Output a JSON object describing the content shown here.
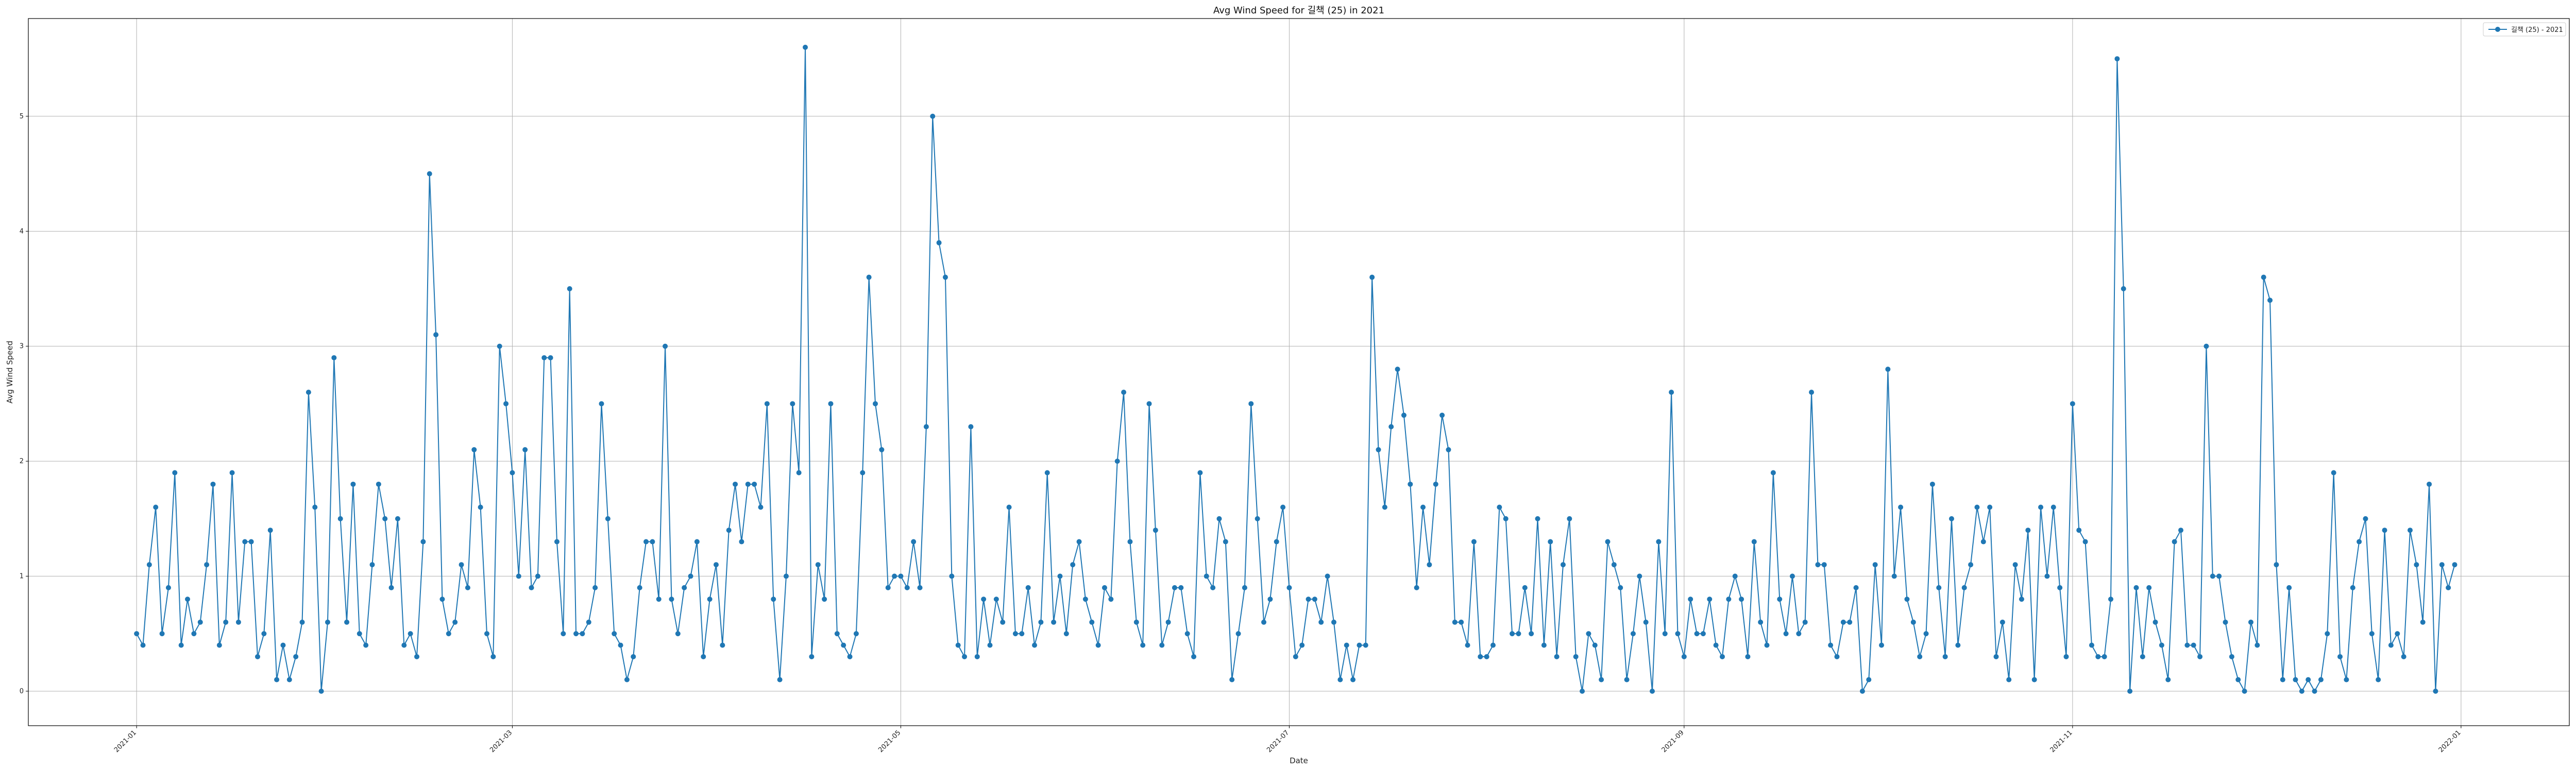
{
  "chart_data": {
    "type": "line",
    "title": "Avg Wind Speed for 길책 (25) in 2021",
    "xlabel": "Date",
    "ylabel": "Avg Wind Speed",
    "x_start": "2021-01-01",
    "x_end": "2021-12-31",
    "xlim": [
      "2020-12-15",
      "2022-01-18"
    ],
    "ylim": [
      -0.3,
      5.85
    ],
    "y_ticks": [
      0,
      1,
      2,
      3,
      4,
      5
    ],
    "x_ticks": [
      "2021-01",
      "2021-03",
      "2021-05",
      "2021-07",
      "2021-09",
      "2021-11",
      "2022-01"
    ],
    "grid": true,
    "legend": "top-right",
    "color": "#1f77b4",
    "series": [
      {
        "name": "길책 (25) - 2021",
        "values": [
          0.5,
          0.4,
          1.1,
          1.6,
          0.5,
          0.9,
          1.9,
          0.4,
          0.8,
          0.5,
          0.6,
          1.1,
          1.8,
          0.4,
          0.6,
          1.9,
          0.6,
          1.3,
          1.3,
          0.3,
          0.5,
          1.4,
          0.1,
          0.4,
          0.1,
          0.3,
          0.6,
          2.6,
          1.6,
          0.0,
          0.6,
          2.9,
          1.5,
          0.6,
          1.8,
          0.5,
          0.4,
          1.1,
          1.8,
          1.5,
          0.9,
          1.5,
          0.4,
          0.5,
          0.3,
          1.3,
          4.5,
          3.1,
          0.8,
          0.5,
          0.6,
          1.1,
          0.9,
          2.1,
          1.6,
          0.5,
          0.3,
          3.0,
          2.5,
          1.9,
          1.0,
          2.1,
          0.9,
          1.0,
          2.9,
          2.9,
          1.3,
          0.5,
          3.5,
          0.5,
          0.5,
          0.6,
          0.9,
          2.5,
          1.5,
          0.5,
          0.4,
          0.1,
          0.3,
          0.9,
          1.3,
          1.3,
          0.8,
          3.0,
          0.8,
          0.5,
          0.9,
          1.0,
          1.3,
          0.3,
          0.8,
          1.1,
          0.4,
          1.4,
          1.8,
          1.3,
          1.8,
          1.8,
          1.6,
          2.5,
          0.8,
          0.1,
          1.0,
          2.5,
          1.9,
          5.6,
          0.3,
          1.1,
          0.8,
          2.5,
          0.5,
          0.4,
          0.3,
          0.5,
          1.9,
          3.6,
          2.5,
          2.1,
          0.9,
          1.0,
          1.0,
          0.9,
          1.3,
          0.9,
          2.3,
          5.0,
          3.9,
          3.6,
          1.0,
          0.4,
          0.3,
          2.3,
          0.3,
          0.8,
          0.4,
          0.8,
          0.6,
          1.6,
          0.5,
          0.5,
          0.9,
          0.4,
          0.6,
          1.9,
          0.6,
          1.0,
          0.5,
          1.1,
          1.3,
          0.8,
          0.6,
          0.4,
          0.9,
          0.8,
          2.0,
          2.6,
          1.3,
          0.6,
          0.4,
          2.5,
          1.4,
          0.4,
          0.6,
          0.9,
          0.9,
          0.5,
          0.3,
          1.9,
          1.0,
          0.9,
          1.5,
          1.3,
          0.1,
          0.5,
          0.9,
          2.5,
          1.5,
          0.6,
          0.8,
          1.3,
          1.6,
          0.9,
          0.3,
          0.4,
          0.8,
          0.8,
          0.6,
          1.0,
          0.6,
          0.1,
          0.4,
          0.1,
          0.4,
          0.4,
          3.6,
          2.1,
          1.6,
          2.3,
          2.8,
          2.4,
          1.8,
          0.9,
          1.6,
          1.1,
          1.8,
          2.4,
          2.1,
          0.6,
          0.6,
          0.4,
          1.3,
          0.3,
          0.3,
          0.4,
          1.6,
          1.5,
          0.5,
          0.5,
          0.9,
          0.5,
          1.5,
          0.4,
          1.3,
          0.3,
          1.1,
          1.5,
          0.3,
          0.0,
          0.5,
          0.4,
          0.1,
          1.3,
          1.1,
          0.9,
          0.1,
          0.5,
          1.0,
          0.6,
          0.0,
          1.3,
          0.5,
          2.6,
          0.5,
          0.3,
          0.8,
          0.5,
          0.5,
          0.8,
          0.4,
          0.3,
          0.8,
          1.0,
          0.8,
          0.3,
          1.3,
          0.6,
          0.4,
          1.9,
          0.8,
          0.5,
          1.0,
          0.5,
          0.6,
          2.6,
          1.1,
          1.1,
          0.4,
          0.3,
          0.6,
          0.6,
          0.9,
          0.0,
          0.1,
          1.1,
          0.4,
          2.8,
          1.0,
          1.6,
          0.8,
          0.6,
          0.3,
          0.5,
          1.8,
          0.9,
          0.3,
          1.5,
          0.4,
          0.9,
          1.1,
          1.6,
          1.3,
          1.6,
          0.3,
          0.6,
          0.1,
          1.1,
          0.8,
          1.4,
          0.1,
          1.6,
          1.0,
          1.6,
          0.9,
          0.3,
          2.5,
          1.4,
          1.3,
          0.4,
          0.3,
          0.3,
          0.8,
          5.5,
          3.5,
          0.0,
          0.9,
          0.3,
          0.9,
          0.6,
          0.4,
          0.1,
          1.3,
          1.4,
          0.4,
          0.4,
          0.3,
          3.0,
          1.0,
          1.0,
          0.6,
          0.3,
          0.1,
          0.0,
          0.6,
          0.4,
          3.6,
          3.4,
          1.1,
          0.1,
          0.9,
          0.1,
          0.0,
          0.1,
          0.0,
          0.1,
          0.5,
          1.9,
          0.3,
          0.1,
          0.9,
          1.3,
          1.5,
          0.5,
          0.1,
          1.4,
          0.4,
          0.5,
          0.3,
          1.4,
          1.1,
          0.6,
          1.8,
          0.0,
          1.1,
          0.9,
          1.1
        ]
      }
    ]
  }
}
